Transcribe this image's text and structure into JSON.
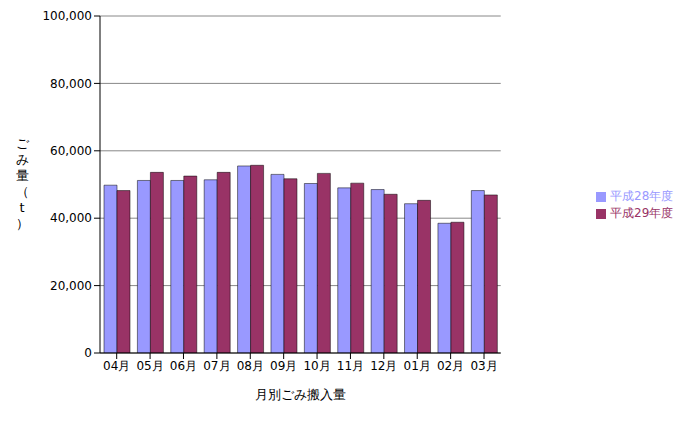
{
  "chart_data": {
    "type": "bar",
    "x_label": "月別ごみ搬入量",
    "y_label": "ごみ量（t）",
    "categories": [
      "04月",
      "05月",
      "06月",
      "07月",
      "08月",
      "09月",
      "10月",
      "11月",
      "12月",
      "01月",
      "02月",
      "03月"
    ],
    "series": [
      {
        "name": "平成28年度",
        "color": "#9999ff",
        "values": [
          49800,
          51200,
          51200,
          51400,
          55500,
          53000,
          50300,
          49000,
          48500,
          44300,
          38500,
          48200
        ]
      },
      {
        "name": "平成29年度",
        "color": "#993366",
        "values": [
          48200,
          53600,
          52500,
          53600,
          55700,
          51700,
          53300,
          50400,
          47100,
          45300,
          38800,
          46900
        ]
      }
    ],
    "ylim": [
      0,
      100000
    ],
    "yticks": [
      {
        "value": 0,
        "label": "0"
      },
      {
        "value": 20000,
        "label": "20,000"
      },
      {
        "value": 40000,
        "label": "40,000"
      },
      {
        "value": 60000,
        "label": "60,000"
      },
      {
        "value": 80000,
        "label": "80,000"
      },
      {
        "value": 100000,
        "label": "100,000"
      }
    ],
    "grid": true,
    "legend": "right"
  }
}
